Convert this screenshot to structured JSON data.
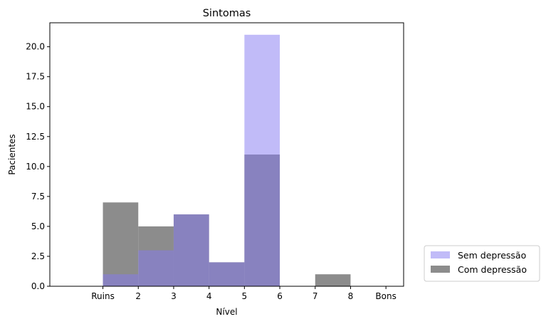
{
  "chart_data": {
    "type": "bar",
    "title": "Sintomas",
    "xlabel": "Nível",
    "ylabel": "Pacientes",
    "xlim": [
      -0.5,
      9.5
    ],
    "ylim": [
      0,
      22
    ],
    "x_ticks": [
      {
        "value": 1,
        "label": "Ruins"
      },
      {
        "value": 2,
        "label": "2"
      },
      {
        "value": 3,
        "label": "3"
      },
      {
        "value": 4,
        "label": "4"
      },
      {
        "value": 5,
        "label": "5"
      },
      {
        "value": 6,
        "label": "6"
      },
      {
        "value": 7,
        "label": "7"
      },
      {
        "value": 8,
        "label": "8"
      },
      {
        "value": 9,
        "label": "Bons"
      }
    ],
    "y_ticks": [
      {
        "value": 0,
        "label": "0.0"
      },
      {
        "value": 2.5,
        "label": "2.5"
      },
      {
        "value": 5,
        "label": "5.0"
      },
      {
        "value": 7.5,
        "label": "7.5"
      },
      {
        "value": 10,
        "label": "10.0"
      },
      {
        "value": 12.5,
        "label": "12.5"
      },
      {
        "value": 15,
        "label": "15.0"
      },
      {
        "value": 17.5,
        "label": "17.5"
      },
      {
        "value": 20,
        "label": "20.0"
      }
    ],
    "bins": [
      [
        1,
        2
      ],
      [
        2,
        3
      ],
      [
        3,
        4
      ],
      [
        4,
        5
      ],
      [
        5,
        6
      ],
      [
        6,
        7
      ],
      [
        7,
        8
      ],
      [
        8,
        9
      ]
    ],
    "series": [
      {
        "name": "Com depressão",
        "values": [
          7,
          5,
          6,
          2,
          11,
          0,
          1,
          0
        ],
        "color": "#808080",
        "opacity": 0.9
      },
      {
        "name": "Sem depressão",
        "values": [
          1,
          3,
          6,
          2,
          21,
          0,
          0,
          0
        ],
        "color": "#8477f2",
        "opacity": 0.5
      }
    ],
    "legend": {
      "placement": "outside-bottom-right",
      "entries": [
        {
          "label": "Sem depressão",
          "color": "#8477f2",
          "opacity": 0.5
        },
        {
          "label": "Com depressão",
          "color": "#808080",
          "opacity": 0.9
        }
      ]
    },
    "grid": false
  }
}
